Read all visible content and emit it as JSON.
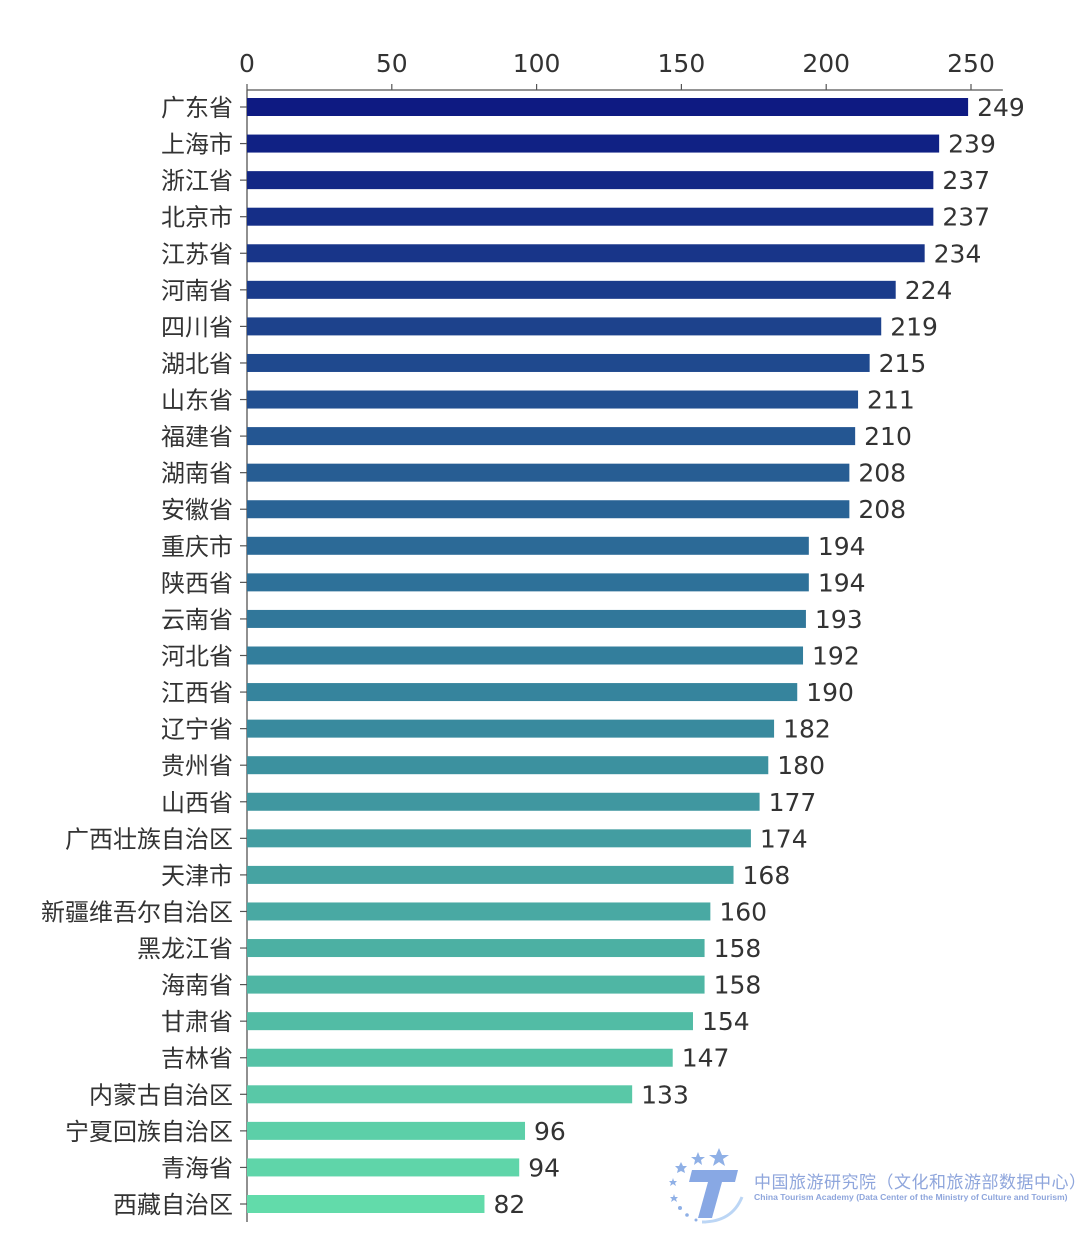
{
  "chart_data": {
    "type": "bar",
    "orientation": "horizontal",
    "categories": [
      "广东省",
      "上海市",
      "浙江省",
      "北京市",
      "江苏省",
      "河南省",
      "四川省",
      "湖北省",
      "山东省",
      "福建省",
      "湖南省",
      "安徽省",
      "重庆市",
      "陕西省",
      "云南省",
      "河北省",
      "江西省",
      "辽宁省",
      "贵州省",
      "山西省",
      "广西壮族自治区",
      "天津市",
      "新疆维吾尔自治区",
      "黑龙江省",
      "海南省",
      "甘肃省",
      "吉林省",
      "内蒙古自治区",
      "宁夏回族自治区",
      "青海省",
      "西藏自治区"
    ],
    "values": [
      249,
      239,
      237,
      237,
      234,
      224,
      219,
      215,
      211,
      210,
      208,
      208,
      194,
      194,
      193,
      192,
      190,
      182,
      180,
      177,
      174,
      168,
      160,
      158,
      158,
      154,
      147,
      133,
      96,
      94,
      82
    ],
    "xlim": [
      0,
      261
    ],
    "xticks": [
      0,
      50,
      100,
      150,
      200,
      250
    ],
    "xaxis_position": "top",
    "grid": false,
    "data_labels": true,
    "colors": {
      "start": "#0e1a82",
      "mid": "#337e9c",
      "end": "#62dbaa"
    }
  },
  "logo": {
    "name_cn": "中国旅游研究院（文化和旅游部数据中心）",
    "name_en": "China Tourism Academy (Data Center of the Ministry of Culture and Tourism)"
  }
}
